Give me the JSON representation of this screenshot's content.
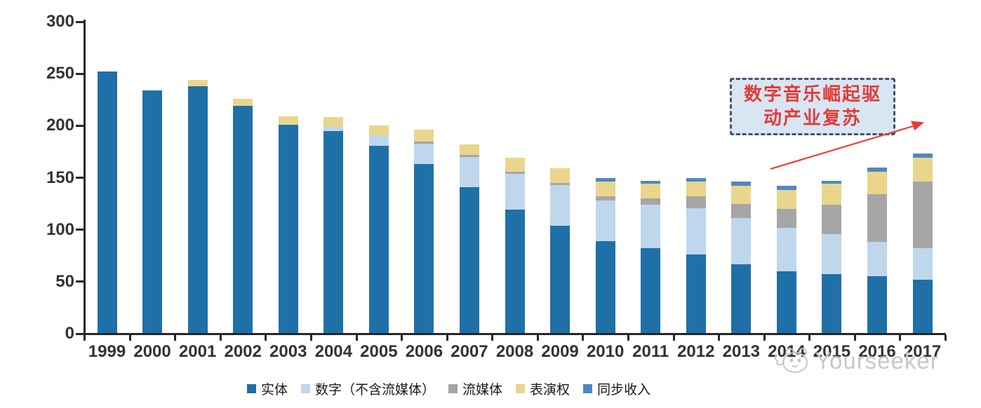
{
  "chart_data": {
    "type": "bar",
    "stacked": true,
    "title": "",
    "xlabel": "",
    "ylabel": "",
    "ylim": [
      0,
      300
    ],
    "y_ticks": [
      0,
      50,
      100,
      150,
      200,
      250,
      300
    ],
    "grid": false,
    "legend_position": "bottom",
    "categories": [
      "1999",
      "2000",
      "2001",
      "2002",
      "2003",
      "2004",
      "2005",
      "2006",
      "2007",
      "2008",
      "2009",
      "2010",
      "2011",
      "2012",
      "2013",
      "2014",
      "2015",
      "2016",
      "2017"
    ],
    "series": [
      {
        "key": "physical",
        "name": "实体",
        "color": "#2070A8",
        "values": [
          252,
          234,
          238,
          219,
          201,
          195,
          181,
          163,
          141,
          119,
          104,
          89,
          82,
          76,
          67,
          60,
          57,
          55,
          52
        ]
      },
      {
        "key": "digital-excl-streaming",
        "name": "数字（不含流媒体）",
        "color": "#BFD7ED",
        "values": [
          0,
          0,
          0,
          0,
          0,
          4,
          10,
          20,
          29,
          35,
          39,
          39,
          42,
          45,
          44,
          42,
          39,
          33,
          30
        ]
      },
      {
        "key": "streaming",
        "name": "流媒体",
        "color": "#A6A6A6",
        "values": [
          0,
          0,
          0,
          0,
          0,
          0,
          0,
          2,
          2,
          2,
          2,
          4,
          6,
          11,
          14,
          18,
          28,
          46,
          64
        ]
      },
      {
        "key": "performance-rights",
        "name": "表演权",
        "color": "#EAD58C",
        "values": [
          0,
          0,
          6,
          7,
          8,
          9,
          9,
          11,
          10,
          13,
          14,
          14,
          14,
          14,
          17,
          18,
          20,
          22,
          23
        ]
      },
      {
        "key": "sync-revenue",
        "name": "同步收入",
        "color": "#4E87C2",
        "values": [
          0,
          0,
          0,
          0,
          0,
          0,
          0,
          0,
          0,
          0,
          0,
          4,
          3,
          4,
          4,
          4,
          3,
          4,
          4
        ]
      }
    ]
  },
  "annotation": {
    "line1": "数字音乐崛起驱",
    "line2": "动产业复苏",
    "text_color": "#E23C38",
    "box_fill": "#D8E6F4",
    "border_color": "#44546A",
    "arrow_color": "#ED3B32"
  },
  "watermark": {
    "text": "Yourseeker",
    "color": "#c7c7c7"
  }
}
